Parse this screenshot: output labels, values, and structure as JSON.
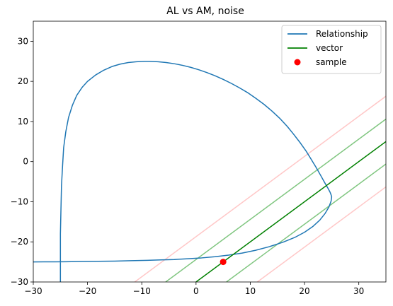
{
  "chart_data": {
    "type": "line",
    "title": "AL vs AM, noise",
    "xlabel": "",
    "ylabel": "",
    "xlim": [
      -30,
      35
    ],
    "ylim": [
      -30,
      35
    ],
    "xticks": [
      -30,
      -20,
      -10,
      0,
      10,
      20,
      30
    ],
    "yticks": [
      -30,
      -20,
      -10,
      0,
      10,
      20,
      30
    ],
    "grid": false,
    "legend_position": "top-right",
    "series": [
      {
        "name": "Relationship",
        "kind": "curve",
        "color": "#1f77b4",
        "x": [
          -25,
          -25,
          -25,
          -25,
          -24.9,
          -24.8,
          -24.6,
          -24.4,
          -24.0,
          -23.5,
          -22.8,
          -22.0,
          -21.0,
          -20.0,
          -18.5,
          -17.0,
          -15.5,
          -14.0,
          -12.5,
          -11.0,
          -9.5,
          -8.6,
          -7.0,
          -5.5,
          -4.0,
          -2.5,
          -1.0,
          0.5,
          2.0,
          3.5,
          5.0,
          6.5,
          8.0,
          9.5,
          11.0,
          12.5,
          14.0,
          15.5,
          16.8,
          18.0,
          19.2,
          20.3,
          21.3,
          22.2,
          23.0,
          23.7,
          24.3,
          24.7,
          24.9,
          25.0,
          24.9,
          24.5,
          23.8,
          22.8,
          21.5,
          20.0,
          18.2,
          16.0,
          13.5,
          11.0,
          8.5,
          6.0,
          3.5,
          1.0,
          -1.5,
          -4.0,
          -6.5,
          -9.0,
          -12.0,
          -15.0,
          -18.0,
          -21.0,
          -24.0,
          -26.0,
          -28.0,
          -30.0
        ],
        "y": [
          -30.0,
          -27.0,
          -23.0,
          -18.0,
          -12.0,
          -6.0,
          -1.0,
          3.5,
          7.5,
          11.0,
          14.0,
          16.5,
          18.5,
          20.0,
          21.6,
          22.8,
          23.7,
          24.3,
          24.7,
          24.9,
          25.0,
          25.0,
          24.9,
          24.7,
          24.4,
          24.0,
          23.5,
          22.9,
          22.2,
          21.4,
          20.5,
          19.5,
          18.4,
          17.2,
          15.8,
          14.3,
          12.6,
          10.7,
          8.8,
          6.8,
          4.7,
          2.6,
          0.4,
          -1.6,
          -3.5,
          -5.2,
          -6.6,
          -7.6,
          -8.3,
          -8.8,
          -9.8,
          -11.3,
          -12.9,
          -14.6,
          -16.2,
          -17.6,
          -18.9,
          -20.1,
          -21.2,
          -22.1,
          -22.8,
          -23.3,
          -23.7,
          -24.0,
          -24.2,
          -24.4,
          -24.5,
          -24.6,
          -24.7,
          -24.8,
          -24.85,
          -24.9,
          -24.95,
          -24.97,
          -24.99,
          -25.0
        ]
      },
      {
        "name": "vector",
        "kind": "line",
        "color": "#008000",
        "x": [
          0,
          35
        ],
        "y": [
          -30,
          5
        ]
      }
    ],
    "bands": [
      {
        "color": "#2ca02c",
        "opacity": 0.6,
        "x": [
          -5.6,
          35
        ],
        "y": [
          -30,
          10.6
        ]
      },
      {
        "color": "#2ca02c",
        "opacity": 0.6,
        "x": [
          5.6,
          35
        ],
        "y": [
          -30,
          -0.6
        ]
      },
      {
        "color": "#ff9999",
        "opacity": 0.55,
        "x": [
          -11.3,
          35
        ],
        "y": [
          -30,
          16.3
        ]
      },
      {
        "color": "#ff9999",
        "opacity": 0.55,
        "x": [
          11.3,
          35
        ],
        "y": [
          -30,
          -6.3
        ]
      }
    ],
    "points": [
      {
        "name": "sample",
        "color": "#ff0000",
        "x": 5,
        "y": -25
      }
    ]
  }
}
